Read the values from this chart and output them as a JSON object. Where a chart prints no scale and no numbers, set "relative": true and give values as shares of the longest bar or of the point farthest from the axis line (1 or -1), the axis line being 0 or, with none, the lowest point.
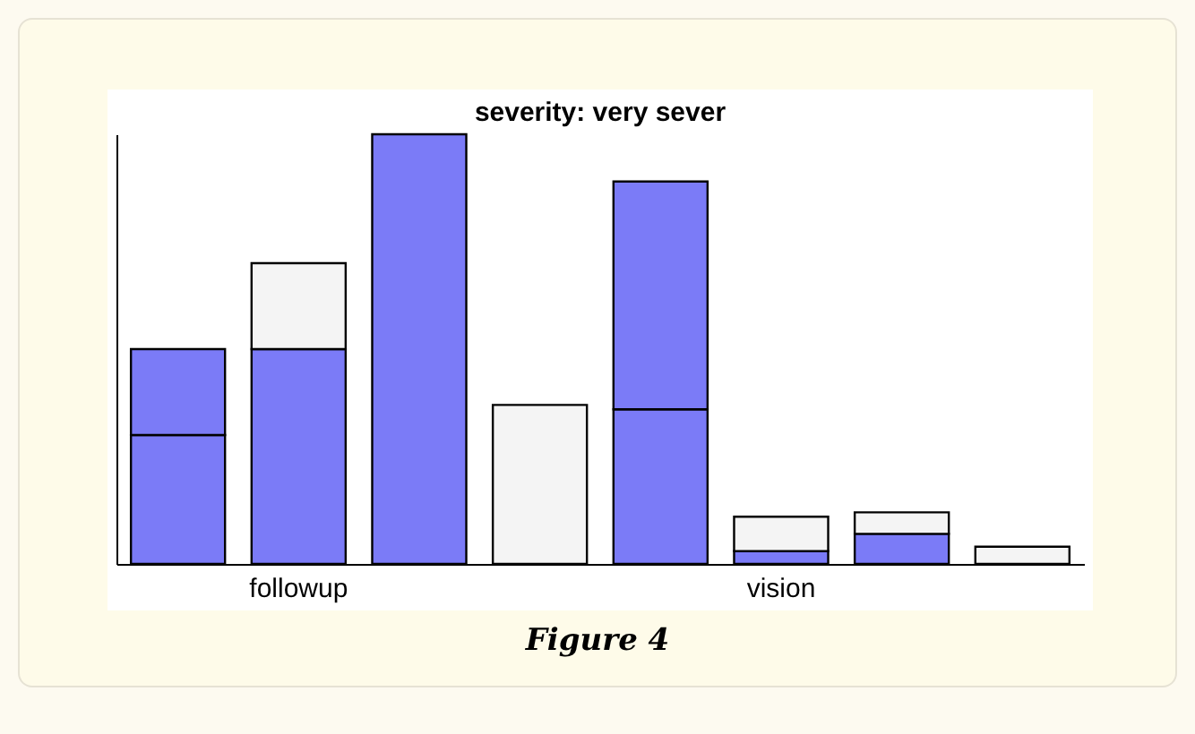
{
  "chart_data": {
    "type": "bar",
    "title": "severity: very sever",
    "stacked": true,
    "relative": true,
    "categories": [
      null,
      "followup",
      null,
      null,
      null,
      "vision",
      null,
      null
    ],
    "series": [
      {
        "color": "#7b7bf7",
        "values": [
          0.3,
          0.5,
          1.0,
          null,
          0.36,
          0.03,
          0.07,
          null
        ]
      },
      {
        "color": "#7b7bf7",
        "values": [
          0.2,
          null,
          null,
          null,
          0.53,
          null,
          null,
          null
        ]
      },
      {
        "color": "#f4f4f4",
        "values": [
          null,
          0.2,
          null,
          0.37,
          null,
          0.08,
          0.05,
          0.04
        ]
      }
    ],
    "annotations": [
      "Figure 4"
    ],
    "grid": false,
    "legend": false
  }
}
